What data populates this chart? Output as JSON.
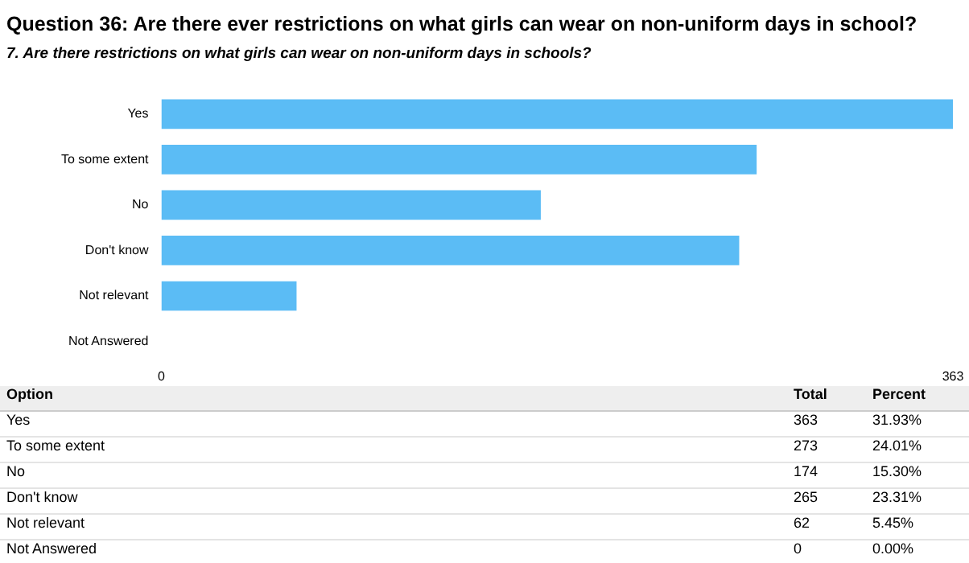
{
  "chart_data": {
    "type": "bar",
    "orientation": "horizontal",
    "title": "Question 36: Are there ever restrictions on what girls can wear on non-uniform days in school?",
    "subtitle": "7. Are there restrictions on what girls can wear on non-uniform days in schools?",
    "categories": [
      "Yes",
      "To some extent",
      "No",
      "Don't know",
      "Not relevant",
      "Not Answered"
    ],
    "values": [
      363,
      273,
      174,
      265,
      62,
      0
    ],
    "color": "#5bbcf5",
    "xlim": [
      0,
      363
    ],
    "xticks": [
      0,
      363
    ],
    "grid": false,
    "legend": false,
    "annotations": [
      "Option",
      "Total",
      "Percent",
      "363",
      "31.93%",
      "273",
      "24.01%",
      "174",
      "15.30%",
      "265",
      "23.31%",
      "62",
      "5.45%",
      "0",
      "0.00%"
    ]
  }
}
